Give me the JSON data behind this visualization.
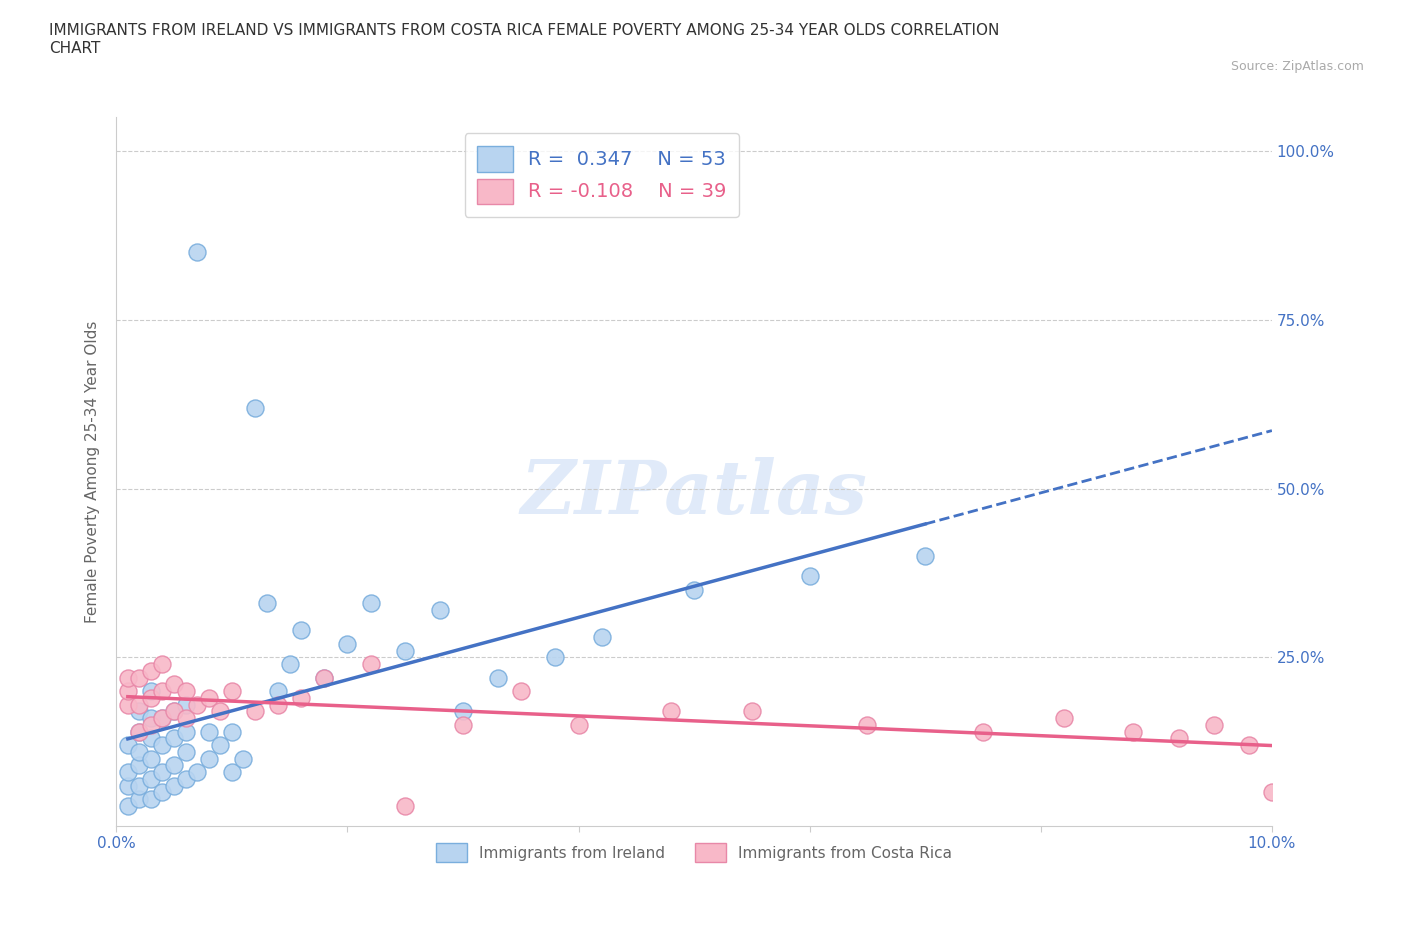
{
  "title": "IMMIGRANTS FROM IRELAND VS IMMIGRANTS FROM COSTA RICA FEMALE POVERTY AMONG 25-34 YEAR OLDS CORRELATION\nCHART",
  "source_text": "Source: ZipAtlas.com",
  "ylabel": "Female Poverty Among 25-34 Year Olds",
  "xlim": [
    0.0,
    0.1
  ],
  "ylim": [
    0.0,
    1.05
  ],
  "yticks": [
    0.0,
    0.25,
    0.5,
    0.75,
    1.0
  ],
  "xticks": [
    0.0,
    0.02,
    0.04,
    0.06,
    0.08,
    0.1
  ],
  "ireland_color": "#b8d4f0",
  "ireland_edge_color": "#7aaedd",
  "costa_rica_color": "#f8b8c8",
  "costa_rica_edge_color": "#e888a8",
  "ireland_trend_color": "#4472c4",
  "costa_rica_trend_color": "#e8608a",
  "R_ireland": 0.347,
  "N_ireland": 53,
  "R_costa_rica": -0.108,
  "N_costa_rica": 39,
  "background_color": "#ffffff",
  "legend_label_ireland": "Immigrants from Ireland",
  "legend_label_costa_rica": "Immigrants from Costa Rica",
  "ireland_x": [
    0.001,
    0.001,
    0.001,
    0.001,
    0.002,
    0.002,
    0.002,
    0.002,
    0.002,
    0.002,
    0.003,
    0.003,
    0.003,
    0.003,
    0.003,
    0.003,
    0.004,
    0.004,
    0.004,
    0.004,
    0.005,
    0.005,
    0.005,
    0.005,
    0.006,
    0.006,
    0.006,
    0.006,
    0.007,
    0.007,
    0.008,
    0.008,
    0.009,
    0.01,
    0.01,
    0.011,
    0.012,
    0.013,
    0.014,
    0.015,
    0.016,
    0.018,
    0.02,
    0.022,
    0.025,
    0.028,
    0.03,
    0.033,
    0.038,
    0.042,
    0.05,
    0.06,
    0.07
  ],
  "ireland_y": [
    0.03,
    0.06,
    0.08,
    0.12,
    0.04,
    0.06,
    0.09,
    0.11,
    0.14,
    0.17,
    0.04,
    0.07,
    0.1,
    0.13,
    0.16,
    0.2,
    0.05,
    0.08,
    0.12,
    0.16,
    0.06,
    0.09,
    0.13,
    0.17,
    0.07,
    0.11,
    0.14,
    0.18,
    0.08,
    0.85,
    0.1,
    0.14,
    0.12,
    0.08,
    0.14,
    0.1,
    0.62,
    0.33,
    0.2,
    0.24,
    0.29,
    0.22,
    0.27,
    0.33,
    0.26,
    0.32,
    0.17,
    0.22,
    0.25,
    0.28,
    0.35,
    0.37,
    0.4
  ],
  "costa_rica_x": [
    0.001,
    0.001,
    0.001,
    0.002,
    0.002,
    0.002,
    0.003,
    0.003,
    0.003,
    0.004,
    0.004,
    0.004,
    0.005,
    0.005,
    0.006,
    0.006,
    0.007,
    0.008,
    0.009,
    0.01,
    0.012,
    0.014,
    0.016,
    0.018,
    0.022,
    0.025,
    0.03,
    0.035,
    0.04,
    0.048,
    0.055,
    0.065,
    0.075,
    0.082,
    0.088,
    0.092,
    0.095,
    0.098,
    0.1
  ],
  "costa_rica_y": [
    0.18,
    0.2,
    0.22,
    0.14,
    0.18,
    0.22,
    0.15,
    0.19,
    0.23,
    0.16,
    0.2,
    0.24,
    0.17,
    0.21,
    0.16,
    0.2,
    0.18,
    0.19,
    0.17,
    0.2,
    0.17,
    0.18,
    0.19,
    0.22,
    0.24,
    0.03,
    0.15,
    0.2,
    0.15,
    0.17,
    0.17,
    0.15,
    0.14,
    0.16,
    0.14,
    0.13,
    0.15,
    0.12,
    0.05
  ]
}
